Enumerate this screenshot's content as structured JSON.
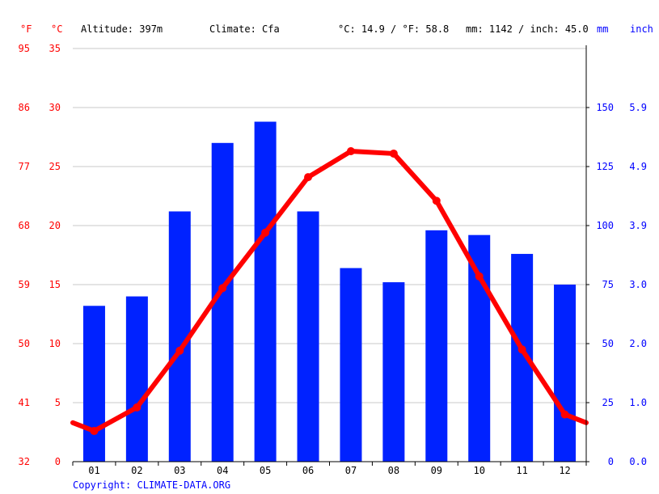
{
  "header": {
    "unit_f": "°F",
    "unit_c": "°C",
    "altitude": "Altitude: 397m",
    "climate": "Climate: Cfa",
    "temp_avg": "°C: 14.9 / °F: 58.8",
    "precip_avg": "mm: 1142 / inch: 45.0",
    "unit_mm": "mm",
    "unit_inch": "inch"
  },
  "footer": {
    "copyright": "Copyright: CLIMATE-DATA.ORG"
  },
  "colors": {
    "temperature": "#ff0000",
    "precipitation": "#0022ff",
    "grid": "#c8c8c8",
    "axis": "#000000",
    "blue_text": "#0000ff",
    "red_text": "#ff0000"
  },
  "chart_data": {
    "type": "bar",
    "categories": [
      "01",
      "02",
      "03",
      "04",
      "05",
      "06",
      "07",
      "08",
      "09",
      "10",
      "11",
      "12"
    ],
    "series": [
      {
        "type": "bar",
        "axis": "right",
        "unit": "mm",
        "values": [
          66,
          70,
          106,
          135,
          144,
          106,
          82,
          76,
          98,
          96,
          88,
          75
        ]
      },
      {
        "type": "line",
        "axis": "left",
        "unit": "°C",
        "values": [
          2.6,
          4.6,
          9.4,
          14.7,
          19.4,
          24.1,
          26.3,
          26.1,
          22.1,
          15.7,
          9.5,
          4.0
        ],
        "edge_start": 3.3,
        "edge_end": 3.3
      }
    ],
    "ylim_c": [
      0,
      35
    ],
    "ylim_mm": [
      0,
      175
    ],
    "y_ticks_c": [
      "0",
      "5",
      "10",
      "15",
      "20",
      "25",
      "30",
      "35"
    ],
    "y_ticks_f": [
      "32",
      "41",
      "50",
      "59",
      "68",
      "77",
      "86",
      "95"
    ],
    "y_ticks_mm": [
      "0",
      "25",
      "50",
      "75",
      "100",
      "125",
      "150",
      ""
    ],
    "y_ticks_inch": [
      "0.0",
      "1.0",
      "2.0",
      "3.0",
      "3.9",
      "4.9",
      "5.9",
      ""
    ],
    "grid": true
  }
}
